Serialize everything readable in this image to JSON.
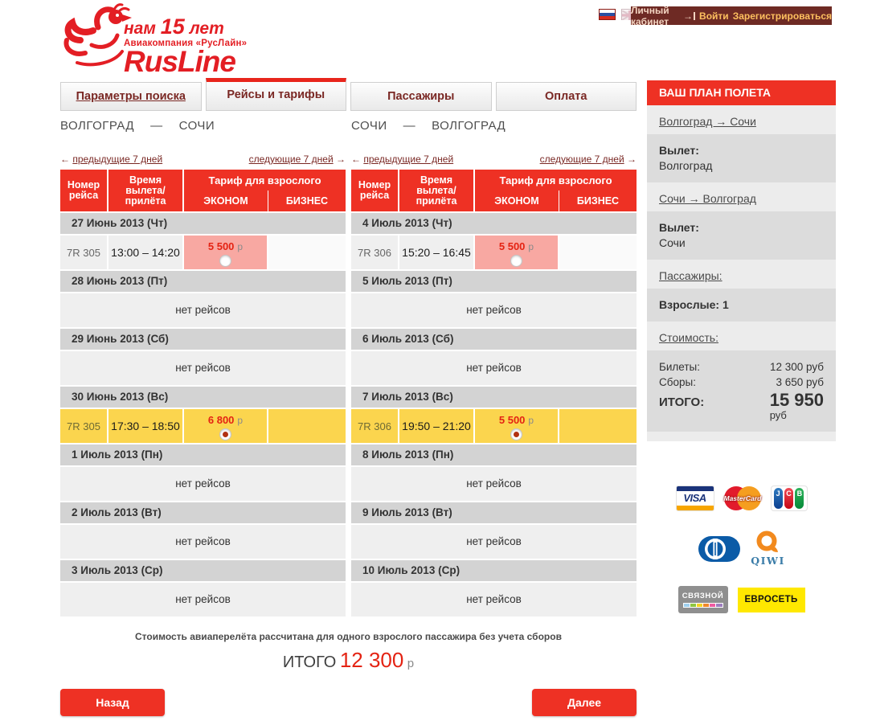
{
  "header": {
    "logo": {
      "anniversary_pre": "нам",
      "anniversary_num": "15",
      "anniversary_post": "лет",
      "company": "Авиакомпания «РусЛайн»",
      "brand": "RusLine"
    },
    "login": {
      "cabinet": "Личный кабинет",
      "sign_in": "Войти",
      "register": "Зарегистрироваться"
    }
  },
  "icons": {
    "login_arrow": "→"
  },
  "tabs": [
    {
      "label": "Параметры поиска",
      "active": false
    },
    {
      "label": "Рейсы и тарифы",
      "active": true
    },
    {
      "label": "Пассажиры",
      "active": false
    },
    {
      "label": "Оплата",
      "active": false
    }
  ],
  "table": {
    "col_flight": "Номер рейса",
    "col_time": "Время вылета/ прилёта",
    "col_tariff": "Тариф для взрослого",
    "col_econom": "ЭКОНОМ",
    "col_business": "БИЗНЕС",
    "no_flights_label": "нет рейсов",
    "prev_arrow": "←",
    "prev_label": "предыдущие 7 дней",
    "next_label": "следующие 7 дней",
    "next_arrow": "→",
    "currency": "р"
  },
  "columns": [
    {
      "route_from": "ВОЛГОГРАД",
      "route_dash": "—",
      "route_to": "СОЧИ",
      "days": [
        {
          "date": "27 Июнь 2013 (Чт)",
          "flight": {
            "number": "7R 305",
            "time": "13:00 – 14:20",
            "econom_price": "5 500",
            "selected": false
          }
        },
        {
          "date": "28 Июнь 2013 (Пт)",
          "no_flights": true
        },
        {
          "date": "29 Июнь 2013 (Сб)",
          "no_flights": true
        },
        {
          "date": "30 Июнь 2013 (Вс)",
          "flight": {
            "number": "7R 305",
            "time": "17:30 – 18:50",
            "econom_price": "6 800",
            "selected": true
          }
        },
        {
          "date": "1 Июль 2013 (Пн)",
          "no_flights": true
        },
        {
          "date": "2 Июль 2013 (Вт)",
          "no_flights": true
        },
        {
          "date": "3 Июль 2013 (Ср)",
          "no_flights": true
        }
      ]
    },
    {
      "route_from": "СОЧИ",
      "route_dash": "—",
      "route_to": "ВОЛГОГРАД",
      "days": [
        {
          "date": "4 Июль 2013 (Чт)",
          "flight": {
            "number": "7R 306",
            "time": "15:20 – 16:45",
            "econom_price": "5 500",
            "selected": false
          }
        },
        {
          "date": "5 Июль 2013 (Пт)",
          "no_flights": true
        },
        {
          "date": "6 Июль 2013 (Сб)",
          "no_flights": true
        },
        {
          "date": "7 Июль 2013 (Вс)",
          "flight": {
            "number": "7R 306",
            "time": "19:50 – 21:20",
            "econom_price": "5 500",
            "selected": true
          }
        },
        {
          "date": "8 Июль 2013 (Пн)",
          "no_flights": true
        },
        {
          "date": "9 Июль 2013 (Вт)",
          "no_flights": true
        },
        {
          "date": "10 Июль 2013 (Ср)",
          "no_flights": true
        }
      ]
    }
  ],
  "footer": {
    "note": "Стоимость авиаперелёта рассчитана для одного взрослого пассажира без учета сборов",
    "total_label": "ИТОГО",
    "total_value": "12 300",
    "total_currency": "р",
    "back_button": "Назад",
    "next_button": "Далее"
  },
  "sidebar": {
    "title": "ВАШ ПЛАН ПОЛЕТА",
    "segments": [
      {
        "route": "Волгоград → Сочи",
        "depart_label": "Вылет:",
        "depart_city": "Волгоград"
      },
      {
        "route": "Сочи → Волгоград",
        "depart_label": "Вылет:",
        "depart_city": "Сочи"
      }
    ],
    "passengers_link": "Пассажиры:",
    "passengers_value": "Взрослые: 1",
    "cost_link": "Стоимость:",
    "tickets_label": "Билеты:",
    "tickets_value": "12 300 руб",
    "fees_label": "Сборы:",
    "fees_value": "3 650 руб",
    "total_label": "ИТОГО:",
    "total_value": "15 950",
    "total_currency": "руб"
  },
  "payments": {
    "visa": "VISA",
    "mastercard": "MasterCard",
    "jcb_letters": [
      "J",
      "C",
      "B"
    ],
    "qiwi": "QIWI",
    "svyaznoy": "СВЯЗНОЙ",
    "euroset": "ЕВРОСЕТЬ"
  },
  "colors": {
    "accent_red": "#ee3124",
    "selected_yellow": "#fbd54e",
    "econom_pink": "#f8a8a2",
    "login_maroon": "#6e2a24",
    "date_row_gray": "#d3d3d3"
  }
}
